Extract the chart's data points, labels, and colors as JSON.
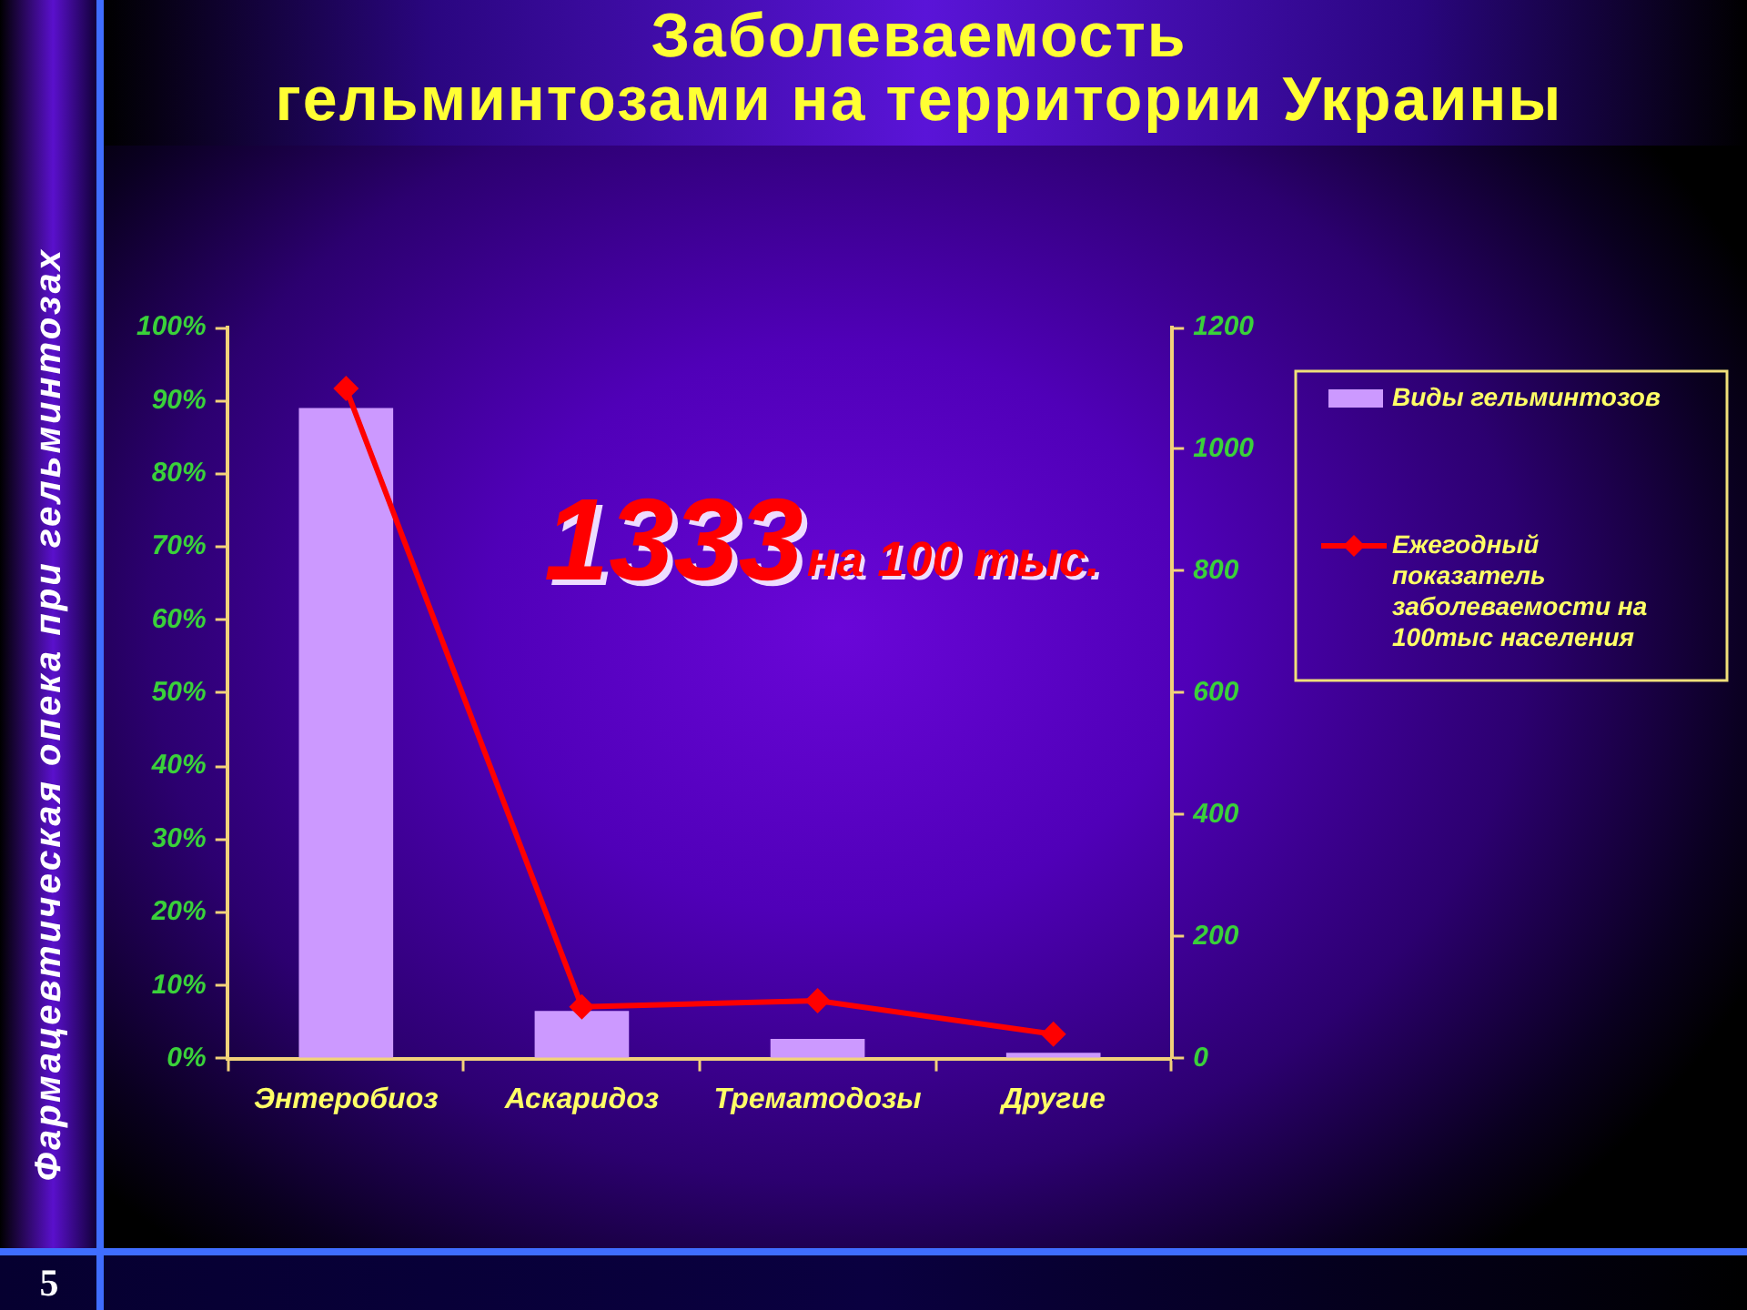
{
  "chart_data": {
    "type": "bar",
    "title": "Заболеваемость гельминтозами на территории Украины",
    "categories": [
      "Энтеробиоз",
      "Аскаридоз",
      "Трематодозы",
      "Другие"
    ],
    "series": [
      {
        "name": "Виды гельминтозов",
        "color": "#cc99ff",
        "values": [
          89,
          6.5,
          2.7,
          0.8
        ]
      },
      {
        "name": "Ежегодный показатель заболеваемости на 100тыс населения",
        "type": "line",
        "axis": "y2",
        "marker": "diamond",
        "color": "#ff0000",
        "values": [
          1100,
          85,
          95,
          40
        ]
      }
    ],
    "ylim": [
      0,
      100
    ],
    "yticks": [
      {
        "value": 0,
        "label": "0%"
      },
      {
        "value": 10,
        "label": "10%"
      },
      {
        "value": 20,
        "label": "20%"
      },
      {
        "value": 30,
        "label": "30%"
      },
      {
        "value": 40,
        "label": "40%"
      },
      {
        "value": 50,
        "label": "50%"
      },
      {
        "value": 60,
        "label": "60%"
      },
      {
        "value": 70,
        "label": "70%"
      },
      {
        "value": 80,
        "label": "80%"
      },
      {
        "value": 90,
        "label": "90%"
      },
      {
        "value": 100,
        "label": "100%"
      }
    ],
    "y2lim": [
      0,
      1200
    ],
    "y2ticks": [
      0,
      200,
      400,
      600,
      800,
      1000,
      1200
    ],
    "legend": "right",
    "annotations": [
      "1333",
      "на 100 тыс.",
      "Фармацевтическая опека при гельминтозах",
      "5"
    ]
  }
}
